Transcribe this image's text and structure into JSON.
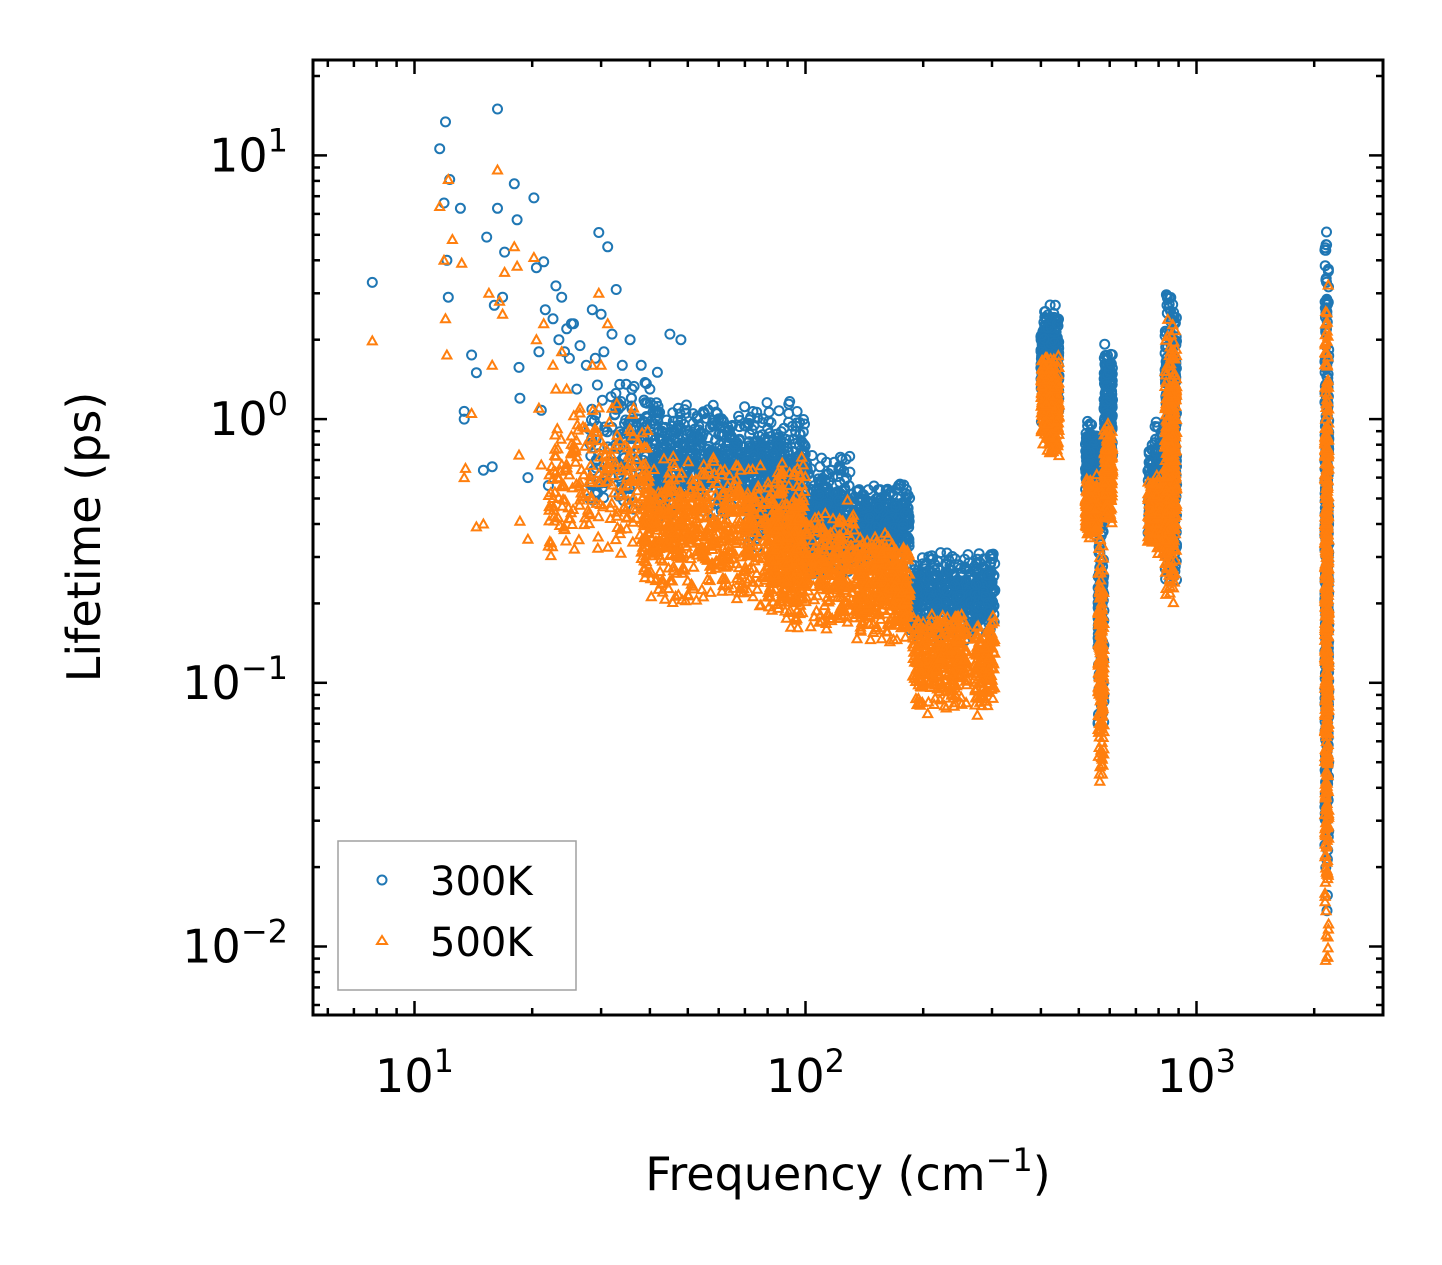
{
  "chart_data": {
    "type": "scatter",
    "xscale": "log",
    "yscale": "log",
    "xlim": [
      5.5,
      3000
    ],
    "ylim": [
      0.0055,
      23
    ],
    "xlabel": "Frequency (cm",
    "xlabel_sup": "−1",
    "xlabel_end": ")",
    "ylabel": "Lifetime (ps)",
    "x_ticks": [
      {
        "value": 10,
        "base": "10",
        "exp": "1"
      },
      {
        "value": 100,
        "base": "10",
        "exp": "2"
      },
      {
        "value": 1000,
        "base": "10",
        "exp": "3"
      }
    ],
    "y_ticks": [
      {
        "value": 10,
        "base": "10",
        "exp": "1"
      },
      {
        "value": 1,
        "base": "10",
        "exp": "0"
      },
      {
        "value": 0.1,
        "base": "10",
        "exp": "−1"
      },
      {
        "value": 0.01,
        "base": "10",
        "exp": "−2"
      }
    ],
    "legend_position": "lower-left",
    "colors": {
      "series_300K": "#1f77b4",
      "series_500K": "#ff7f0e"
    },
    "series": [
      {
        "name": "300K",
        "marker": "circle",
        "color": "#1f77b4",
        "points": [
          [
            7.8,
            3.3
          ],
          [
            11.6,
            10.6
          ],
          [
            11.9,
            6.6
          ],
          [
            12.0,
            13.4
          ],
          [
            12.1,
            4.0
          ],
          [
            12.2,
            2.9
          ],
          [
            12.3,
            8.1
          ],
          [
            13.1,
            6.3
          ],
          [
            13.4,
            1.0
          ],
          [
            13.4,
            1.07
          ],
          [
            14.0,
            1.75
          ],
          [
            14.4,
            1.5
          ],
          [
            15.0,
            0.64
          ],
          [
            15.3,
            4.9
          ],
          [
            15.8,
            0.66
          ],
          [
            16.0,
            2.7
          ],
          [
            16.3,
            6.3
          ],
          [
            16.3,
            15.0
          ],
          [
            16.8,
            2.9
          ],
          [
            17.0,
            4.3
          ],
          [
            18.0,
            7.8
          ],
          [
            18.3,
            5.7
          ],
          [
            18.5,
            1.57
          ],
          [
            18.6,
            1.2
          ],
          [
            19.5,
            0.6
          ],
          [
            20.2,
            6.9
          ],
          [
            20.5,
            3.75
          ],
          [
            20.8,
            1.8
          ],
          [
            21.1,
            1.08
          ],
          [
            21.4,
            3.95
          ],
          [
            21.6,
            2.6
          ],
          [
            22.0,
            0.56
          ],
          [
            22.6,
            2.4
          ],
          [
            23.0,
            3.2
          ],
          [
            23.4,
            2.0
          ],
          [
            23.8,
            2.9
          ],
          [
            24.2,
            1.8
          ],
          [
            24.5,
            2.2
          ],
          [
            24.9,
            1.7
          ],
          [
            25.2,
            2.3
          ],
          [
            25.5,
            2.3
          ],
          [
            26.0,
            1.3
          ],
          [
            26.5,
            1.9
          ],
          [
            27.5,
            1.6
          ],
          [
            28.0,
            0.5
          ],
          [
            28.5,
            2.6
          ],
          [
            29.0,
            1.7
          ],
          [
            29.6,
            5.1
          ],
          [
            30.0,
            2.5
          ],
          [
            30.5,
            1.8
          ],
          [
            31.2,
            4.5
          ],
          [
            32.0,
            2.1
          ],
          [
            32.8,
            3.1
          ],
          [
            34.0,
            1.6
          ],
          [
            35.6,
            2.0
          ],
          [
            36.0,
            1.3
          ],
          [
            38.0,
            1.6
          ],
          [
            40.0,
            1.3
          ],
          [
            45.0,
            2.1
          ],
          [
            48.0,
            2.0
          ]
        ],
        "clusters": [
          {
            "xrange": [
              28,
              42
            ],
            "ymin": 0.45,
            "ymax": 1.6,
            "count": 160
          },
          {
            "xrange": [
              40,
              100
            ],
            "ymin": 0.4,
            "ymax": 1.2,
            "count": 700
          },
          {
            "xrange": [
              70,
              130
            ],
            "ymin": 0.3,
            "ymax": 0.75,
            "count": 400
          },
          {
            "xrange": [
              100,
              135
            ],
            "ymin": 0.25,
            "ymax": 0.55,
            "count": 250
          },
          {
            "xrange": [
              135,
              185
            ],
            "ymin": 0.28,
            "ymax": 0.58,
            "count": 400
          },
          {
            "xrange": [
              185,
              265
            ],
            "ymin": 0.14,
            "ymax": 0.32,
            "count": 350
          },
          {
            "xrange": [
              270,
              305
            ],
            "ymin": 0.15,
            "ymax": 0.32,
            "count": 150
          },
          {
            "xrange": [
              400,
              445
            ],
            "ymin": 0.9,
            "ymax": 2.8,
            "count": 350
          },
          {
            "xrange": [
              520,
              560
            ],
            "ymin": 0.5,
            "ymax": 1.0,
            "count": 200
          },
          {
            "xrange": [
              560,
              580
            ],
            "ymin": 0.06,
            "ymax": 0.65,
            "count": 140
          },
          {
            "xrange": [
              580,
              610
            ],
            "ymin": 0.6,
            "ymax": 2.0,
            "count": 200
          },
          {
            "xrange": [
              750,
              830
            ],
            "ymin": 0.35,
            "ymax": 1.0,
            "count": 200
          },
          {
            "xrange": [
              830,
              890
            ],
            "ymin": 0.2,
            "ymax": 3.6,
            "count": 350
          },
          {
            "xrange": [
              2130,
              2180
            ],
            "ymin": 0.012,
            "ymax": 5.5,
            "count": 500
          }
        ]
      },
      {
        "name": "500K",
        "marker": "triangle",
        "color": "#ff7f0e",
        "points": [
          [
            7.8,
            1.98
          ],
          [
            11.6,
            6.4
          ],
          [
            11.9,
            4.0
          ],
          [
            12.0,
            2.4
          ],
          [
            12.1,
            1.75
          ],
          [
            12.2,
            8.1
          ],
          [
            12.5,
            4.8
          ],
          [
            13.2,
            3.9
          ],
          [
            13.4,
            0.6
          ],
          [
            13.5,
            0.65
          ],
          [
            14.0,
            1.05
          ],
          [
            14.4,
            0.39
          ],
          [
            15.0,
            0.4
          ],
          [
            15.5,
            3.0
          ],
          [
            15.8,
            1.6
          ],
          [
            16.3,
            8.8
          ],
          [
            16.5,
            2.8
          ],
          [
            16.8,
            2.5
          ],
          [
            17.0,
            3.6
          ],
          [
            18.0,
            4.5
          ],
          [
            18.3,
            3.8
          ],
          [
            18.5,
            0.73
          ],
          [
            18.6,
            0.41
          ],
          [
            19.5,
            0.35
          ],
          [
            20.2,
            4.1
          ],
          [
            20.5,
            2.0
          ],
          [
            20.8,
            1.1
          ],
          [
            21.1,
            0.67
          ],
          [
            21.4,
            2.3
          ],
          [
            22.0,
            0.33
          ],
          [
            22.6,
            1.6
          ],
          [
            23.0,
            1.3
          ],
          [
            23.8,
            1.8
          ],
          [
            24.5,
            1.3
          ],
          [
            26.5,
            1.1
          ],
          [
            28.5,
            1.6
          ],
          [
            29.6,
            3.0
          ],
          [
            30.0,
            1.6
          ],
          [
            31.2,
            2.3
          ],
          [
            32.0,
            1.1
          ]
        ],
        "clusters": [
          {
            "xrange": [
              22,
              40
            ],
            "ymin": 0.28,
            "ymax": 1.2,
            "count": 220
          },
          {
            "xrange": [
              38,
              100
            ],
            "ymin": 0.19,
            "ymax": 0.78,
            "count": 800
          },
          {
            "xrange": [
              80,
              135
            ],
            "ymin": 0.15,
            "ymax": 0.5,
            "count": 450
          },
          {
            "xrange": [
              135,
              185
            ],
            "ymin": 0.14,
            "ymax": 0.38,
            "count": 400
          },
          {
            "xrange": [
              188,
              260
            ],
            "ymin": 0.075,
            "ymax": 0.19,
            "count": 350
          },
          {
            "xrange": [
              270,
              305
            ],
            "ymin": 0.075,
            "ymax": 0.18,
            "count": 150
          },
          {
            "xrange": [
              400,
              445
            ],
            "ymin": 0.72,
            "ymax": 1.8,
            "count": 350
          },
          {
            "xrange": [
              520,
              560
            ],
            "ymin": 0.35,
            "ymax": 0.62,
            "count": 200
          },
          {
            "xrange": [
              560,
              580
            ],
            "ymin": 0.035,
            "ymax": 0.4,
            "count": 160
          },
          {
            "xrange": [
              580,
              610
            ],
            "ymin": 0.38,
            "ymax": 1.0,
            "count": 200
          },
          {
            "xrange": [
              750,
              830
            ],
            "ymin": 0.3,
            "ymax": 0.62,
            "count": 200
          },
          {
            "xrange": [
              830,
              890
            ],
            "ymin": 0.18,
            "ymax": 2.45,
            "count": 350
          },
          {
            "xrange": [
              2130,
              2180
            ],
            "ymin": 0.008,
            "ymax": 3.5,
            "count": 500
          }
        ]
      }
    ]
  }
}
